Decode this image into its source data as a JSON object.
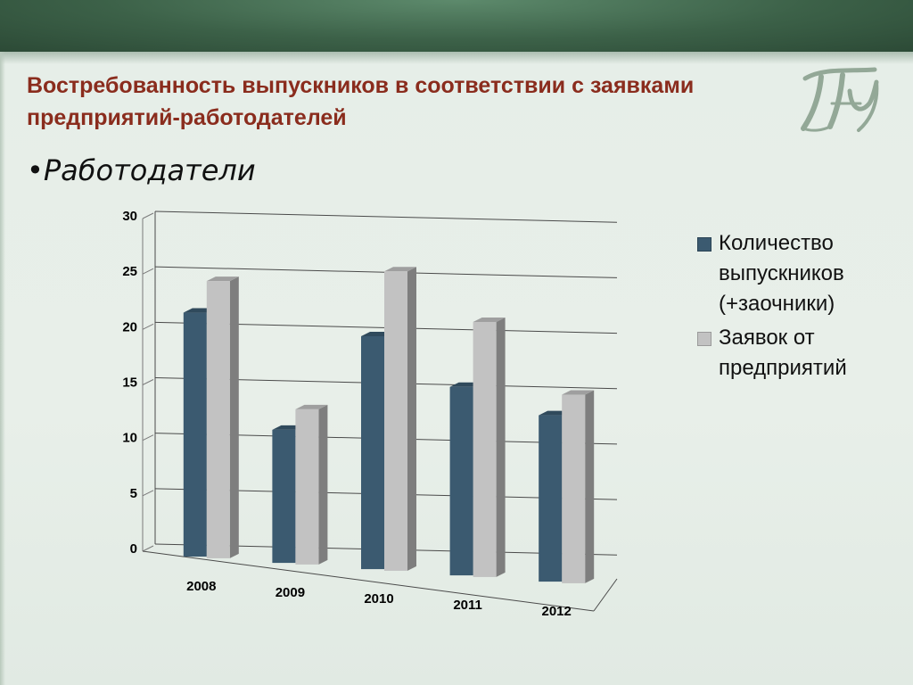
{
  "slide": {
    "title": "Востребованность выпускников в соответствии с заявками предприятий-работодателей",
    "bullet_symbol": "•",
    "bullet_text": "Работодатели",
    "logo_icon": "university-monogram-logo"
  },
  "colors": {
    "title": "#8a2c1d",
    "series_graduates": "#3b5a70",
    "series_requests": "#c2c2c2",
    "header_band": "#3c6148"
  },
  "chart_data": {
    "type": "bar",
    "style": "3d-clustered",
    "categories": [
      "2008",
      "2009",
      "2010",
      "2011",
      "2012"
    ],
    "series": [
      {
        "name": "Количество выпускников (+заочники)",
        "values": [
          22,
          12,
          21,
          17,
          15
        ]
      },
      {
        "name": "Заявок от предприятий",
        "values": [
          25,
          14,
          27,
          23,
          17
        ]
      }
    ],
    "yticks": [
      "0",
      "5",
      "10",
      "15",
      "20",
      "25",
      "30"
    ],
    "ylim": [
      0,
      30
    ],
    "grid": true,
    "legend_placement": "right"
  }
}
